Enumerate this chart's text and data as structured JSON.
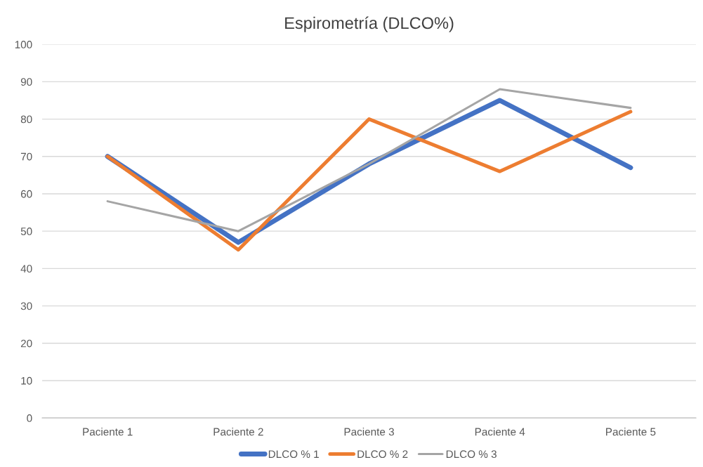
{
  "chart_data": {
    "type": "line",
    "title": "Espirometría (DLCO%)",
    "categories": [
      "Paciente 1",
      "Paciente 2",
      "Paciente 3",
      "Paciente 4",
      "Paciente 5"
    ],
    "series": [
      {
        "name": "DLCO % 1",
        "color": "#4472c4",
        "values": [
          70,
          47,
          68,
          85,
          67
        ]
      },
      {
        "name": "DLCO % 2",
        "color": "#ed7d31",
        "values": [
          70,
          45,
          80,
          66,
          82
        ]
      },
      {
        "name": "DLCO % 3",
        "color": "#a5a5a5",
        "values": [
          58,
          50,
          68,
          88,
          83
        ]
      }
    ],
    "ylim": [
      0,
      100
    ],
    "yticks": [
      0,
      10,
      20,
      30,
      40,
      50,
      60,
      70,
      80,
      90,
      100
    ],
    "grid": "y",
    "legend": "bottom",
    "marker": "none",
    "line_style": "solid"
  }
}
